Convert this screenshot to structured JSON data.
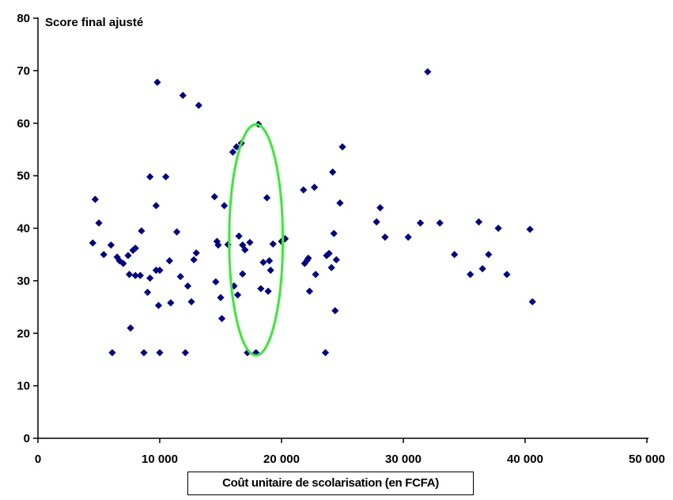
{
  "chart_data": {
    "type": "scatter",
    "title": "",
    "ylabel": "Score final ajusté",
    "xlabel": "Coût unitaire de scolarisation (en FCFA)",
    "xlim": [
      0,
      50000
    ],
    "ylim": [
      0,
      80
    ],
    "x_ticks": [
      {
        "value": 0,
        "label": "0"
      },
      {
        "value": 10000,
        "label": "10 000"
      },
      {
        "value": 20000,
        "label": "20 000"
      },
      {
        "value": 30000,
        "label": "30 000"
      },
      {
        "value": 40000,
        "label": "40 000"
      },
      {
        "value": 50000,
        "label": "50 000"
      }
    ],
    "y_ticks": [
      {
        "value": 0,
        "label": "0"
      },
      {
        "value": 10,
        "label": "10"
      },
      {
        "value": 20,
        "label": "20"
      },
      {
        "value": 30,
        "label": "30"
      },
      {
        "value": 40,
        "label": "40"
      },
      {
        "value": 50,
        "label": "50"
      },
      {
        "value": 60,
        "label": "60"
      },
      {
        "value": 70,
        "label": "70"
      },
      {
        "value": 80,
        "label": "80"
      }
    ],
    "grid": false,
    "legend": "none",
    "marker_color": "#00008B",
    "highlight_ellipse": {
      "color": "#33EE33",
      "cx": 17900,
      "cy": 37.8,
      "rx": 2200,
      "ry": 22
    },
    "points": [
      [
        4500,
        37.2
      ],
      [
        4700,
        45.5
      ],
      [
        5000,
        41.0
      ],
      [
        5400,
        35.0
      ],
      [
        6000,
        36.8
      ],
      [
        6100,
        16.3
      ],
      [
        6500,
        34.5
      ],
      [
        6700,
        33.8
      ],
      [
        7000,
        33.3
      ],
      [
        7400,
        34.8
      ],
      [
        7500,
        31.2
      ],
      [
        7600,
        21.0
      ],
      [
        7800,
        35.8
      ],
      [
        8000,
        36.2
      ],
      [
        8000,
        31.0
      ],
      [
        8400,
        31.0
      ],
      [
        8500,
        39.5
      ],
      [
        8700,
        16.3
      ],
      [
        9000,
        27.8
      ],
      [
        9200,
        30.5
      ],
      [
        9200,
        49.8
      ],
      [
        9700,
        32.0
      ],
      [
        9700,
        44.3
      ],
      [
        9800,
        67.8
      ],
      [
        9900,
        25.3
      ],
      [
        10000,
        32.0
      ],
      [
        10000,
        16.3
      ],
      [
        10500,
        49.8
      ],
      [
        10800,
        33.8
      ],
      [
        10900,
        25.8
      ],
      [
        11400,
        39.3
      ],
      [
        11700,
        30.8
      ],
      [
        11900,
        65.3
      ],
      [
        12100,
        16.3
      ],
      [
        12300,
        29.0
      ],
      [
        12600,
        26.0
      ],
      [
        12800,
        34.0
      ],
      [
        13000,
        35.3
      ],
      [
        13200,
        63.4
      ],
      [
        14500,
        46.0
      ],
      [
        14600,
        29.8
      ],
      [
        14700,
        37.5
      ],
      [
        14800,
        36.8
      ],
      [
        15000,
        26.8
      ],
      [
        15100,
        22.8
      ],
      [
        15300,
        44.3
      ],
      [
        15600,
        36.9
      ],
      [
        16000,
        54.5
      ],
      [
        16100,
        29.0
      ],
      [
        16300,
        55.5
      ],
      [
        16400,
        27.3
      ],
      [
        16500,
        38.5
      ],
      [
        16700,
        56.2
      ],
      [
        16800,
        31.3
      ],
      [
        16800,
        36.8
      ],
      [
        17000,
        35.9
      ],
      [
        17200,
        16.3
      ],
      [
        17400,
        37.3
      ],
      [
        17900,
        16.3
      ],
      [
        18100,
        59.8
      ],
      [
        18300,
        28.5
      ],
      [
        18500,
        33.5
      ],
      [
        18800,
        45.8
      ],
      [
        18900,
        28.0
      ],
      [
        19000,
        33.8
      ],
      [
        19100,
        32.0
      ],
      [
        19300,
        37.0
      ],
      [
        20000,
        37.5
      ],
      [
        20300,
        38.0
      ],
      [
        21800,
        47.3
      ],
      [
        21900,
        33.3
      ],
      [
        22100,
        33.9
      ],
      [
        22200,
        34.3
      ],
      [
        22300,
        28.0
      ],
      [
        22700,
        47.8
      ],
      [
        22800,
        31.2
      ],
      [
        23600,
        16.3
      ],
      [
        23700,
        34.8
      ],
      [
        23900,
        35.2
      ],
      [
        24100,
        32.5
      ],
      [
        24200,
        50.7
      ],
      [
        24300,
        39.0
      ],
      [
        24400,
        24.3
      ],
      [
        24500,
        34.0
      ],
      [
        24800,
        44.8
      ],
      [
        25000,
        55.5
      ],
      [
        27800,
        41.2
      ],
      [
        28100,
        43.9
      ],
      [
        28500,
        38.3
      ],
      [
        30400,
        38.3
      ],
      [
        31400,
        41.0
      ],
      [
        32000,
        69.8
      ],
      [
        33000,
        41.0
      ],
      [
        34200,
        35.0
      ],
      [
        35500,
        31.2
      ],
      [
        36200,
        41.2
      ],
      [
        36500,
        32.3
      ],
      [
        37000,
        35.0
      ],
      [
        37800,
        40.0
      ],
      [
        38500,
        31.2
      ],
      [
        40400,
        39.8
      ],
      [
        40600,
        26.0
      ]
    ]
  }
}
